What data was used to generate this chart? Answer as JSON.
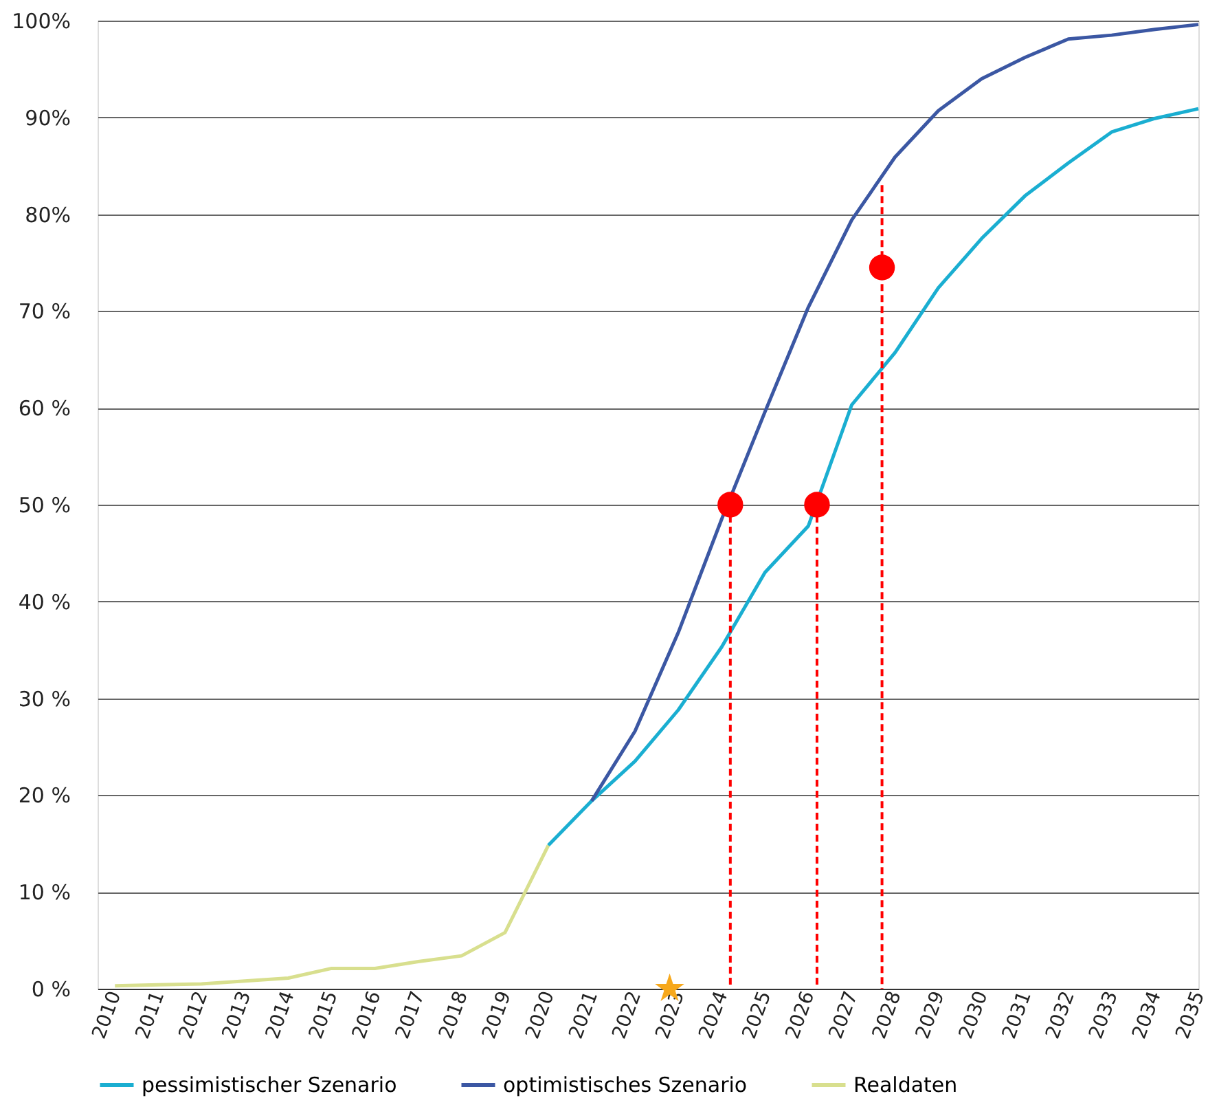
{
  "chart_data": {
    "type": "line",
    "xlim": [
      2009.6,
      2035
    ],
    "xticks": [
      2010,
      2011,
      2012,
      2013,
      2014,
      2015,
      2016,
      2017,
      2018,
      2019,
      2020,
      2021,
      2022,
      2023,
      2024,
      2025,
      2026,
      2027,
      2028,
      2029,
      2030,
      2031,
      2032,
      2033,
      2034,
      2035
    ],
    "ylim": [
      0,
      100
    ],
    "yticks": [
      {
        "value": 0,
        "label": "0 %"
      },
      {
        "value": 10,
        "label": "10 %"
      },
      {
        "value": 20,
        "label": "20 %"
      },
      {
        "value": 30,
        "label": "30 %"
      },
      {
        "value": 40,
        "label": "40 %"
      },
      {
        "value": 50,
        "label": "50 %"
      },
      {
        "value": 60,
        "label": "60 %"
      },
      {
        "value": 70,
        "label": "70 %"
      },
      {
        "value": 80,
        "label": "80%"
      },
      {
        "value": 90,
        "label": "90%"
      },
      {
        "value": 100,
        "label": "100%"
      }
    ],
    "grid": "y",
    "legend": "bottom",
    "line_style": "solid",
    "marker": "none",
    "series": [
      {
        "name": "pessimistischer Szenario",
        "color": "#1aaed1",
        "x": [
          2020,
          2021,
          2022,
          2023,
          2024,
          2025,
          2026,
          2027,
          2028,
          2029,
          2030,
          2031,
          2032,
          2033,
          2034,
          2035
        ],
        "values": [
          14.8,
          19.4,
          23.5,
          28.8,
          35.3,
          43,
          47.8,
          60.3,
          65.7,
          72.4,
          77.5,
          81.9,
          85.3,
          88.5,
          89.9,
          90.9
        ]
      },
      {
        "name": "optimistisches Szenario",
        "color": "#3b57a3",
        "x": [
          2021,
          2022,
          2023,
          2024,
          2025,
          2026,
          2027,
          2028,
          2029,
          2030,
          2031,
          2032,
          2033,
          2034,
          2035
        ],
        "values": [
          19.4,
          26.6,
          36.8,
          48.5,
          59.6,
          70.4,
          79.4,
          85.9,
          90.7,
          94,
          96.2,
          98.1,
          98.5,
          99.1,
          99.6
        ]
      },
      {
        "name": "Realdaten",
        "color": "#d8df8e",
        "x": [
          2010,
          2011,
          2012,
          2013,
          2014,
          2015,
          2016,
          2017,
          2018,
          2019,
          2020
        ],
        "values": [
          0.3,
          0.4,
          0.5,
          0.8,
          1.1,
          2.1,
          2.1,
          2.8,
          3.4,
          5.8,
          14.8
        ]
      },
      {
        "type": "line",
        "line_style": "dashed",
        "color": "#ff0000",
        "x": [
          2024.2,
          2024.2
        ],
        "values": [
          50,
          0
        ]
      },
      {
        "type": "line",
        "line_style": "dashed",
        "color": "#ff0000",
        "x": [
          2026.2,
          2026.2
        ],
        "values": [
          50,
          0
        ]
      },
      {
        "type": "line",
        "line_style": "dashed",
        "color": "#ff0000",
        "x": [
          2027.7,
          2027.7
        ],
        "values": [
          83,
          0
        ]
      },
      {
        "type": "scatter",
        "marker": "circle",
        "color": "#ff0000",
        "x": [
          2024.2,
          2026.2,
          2027.7
        ],
        "values": [
          50,
          50,
          74.5
        ]
      },
      {
        "type": "scatter",
        "marker": "star",
        "color": "#f7a81b",
        "x": [
          2022.8
        ],
        "values": [
          0
        ]
      }
    ]
  }
}
